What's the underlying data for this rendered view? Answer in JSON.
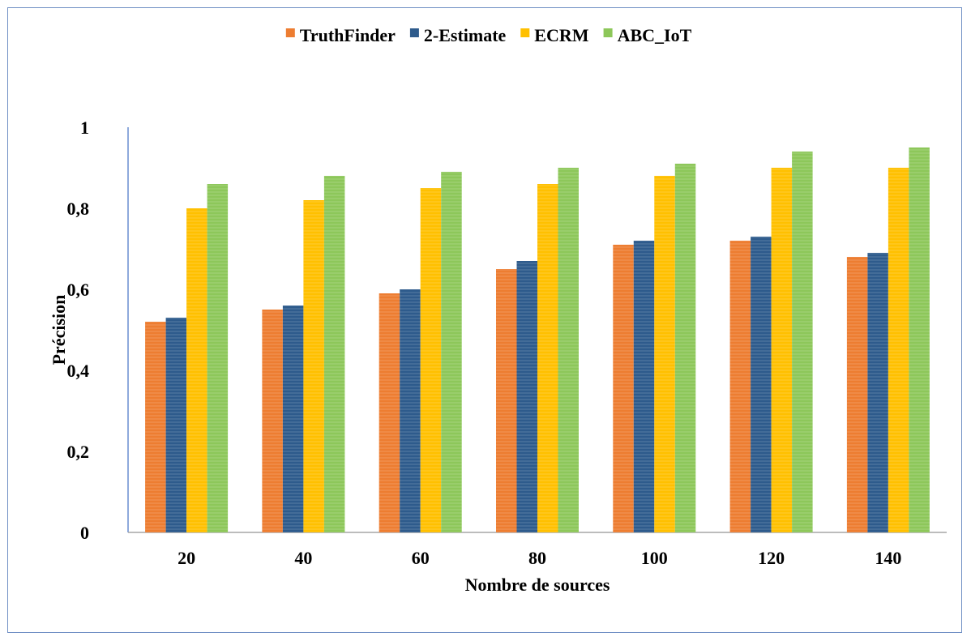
{
  "chart_data": {
    "type": "bar",
    "xlabel": "Nombre de sources",
    "ylabel": "Précision",
    "categories": [
      "20",
      "40",
      "60",
      "80",
      "100",
      "120",
      "140"
    ],
    "ylim": [
      0,
      1
    ],
    "yticks": [
      0,
      0.2,
      0.4,
      0.6,
      0.8,
      1
    ],
    "ytick_labels": [
      "0",
      "0,2",
      "0,4",
      "0,6",
      "0,8",
      "1"
    ],
    "grid": false,
    "legend_position": "top",
    "series": [
      {
        "name": "TruthFinder",
        "color": "#ed7d31",
        "values": [
          0.52,
          0.55,
          0.59,
          0.65,
          0.71,
          0.72,
          0.68
        ]
      },
      {
        "name": "2-Estimate",
        "color": "#2e5b8c",
        "values": [
          0.53,
          0.56,
          0.6,
          0.67,
          0.72,
          0.73,
          0.69
        ]
      },
      {
        "name": "ECRM",
        "color": "#ffc000",
        "values": [
          0.8,
          0.82,
          0.85,
          0.86,
          0.88,
          0.9,
          0.9
        ]
      },
      {
        "name": "ABC_IoT",
        "color": "#8dc75a",
        "values": [
          0.86,
          0.88,
          0.89,
          0.9,
          0.91,
          0.94,
          0.95
        ]
      }
    ]
  }
}
